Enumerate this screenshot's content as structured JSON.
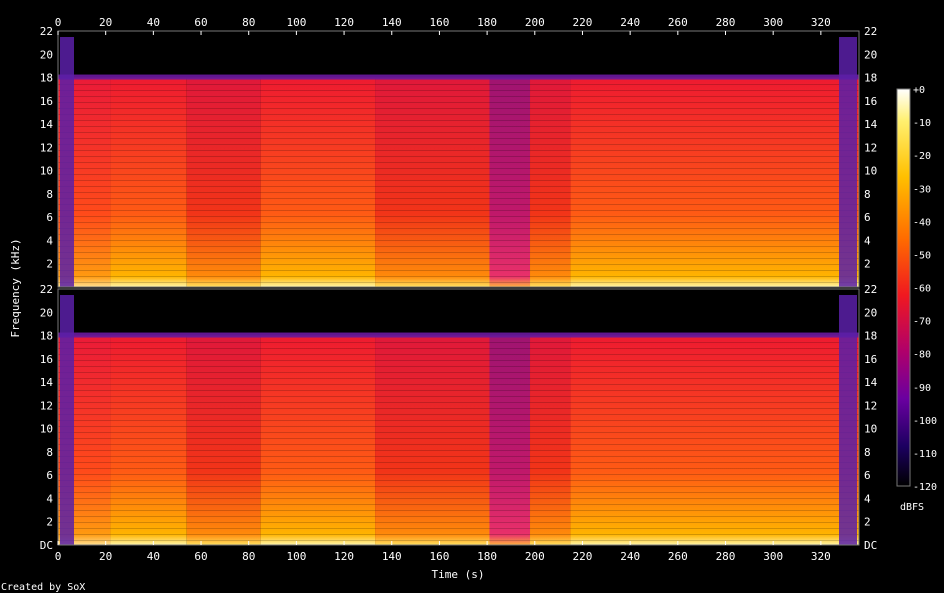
{
  "chart_data": {
    "type": "heatmap",
    "title": "",
    "xlabel": "Time (s)",
    "ylabel": "Frequency (kHz)",
    "xlim": [
      0,
      336
    ],
    "ylim": [
      0,
      22
    ],
    "x_ticks": [
      "0",
      "20",
      "40",
      "60",
      "80",
      "100",
      "120",
      "140",
      "160",
      "180",
      "200",
      "220",
      "240",
      "260",
      "280",
      "300",
      "320"
    ],
    "y_ticks_top_channel": [
      "2",
      "4",
      "6",
      "8",
      "10",
      "12",
      "14",
      "16",
      "18",
      "20",
      "22"
    ],
    "y_ticks_bottom_channel": [
      "DC",
      "2",
      "4",
      "6",
      "8",
      "10",
      "12",
      "14",
      "16",
      "18",
      "20",
      "22"
    ],
    "channels": 2,
    "colorbar": {
      "label": "dBFS",
      "ticks": [
        "+0",
        "-10",
        "-20",
        "-30",
        "-40",
        "-50",
        "-60",
        "-70",
        "-80",
        "-90",
        "-100",
        "-110",
        "-120"
      ]
    },
    "lowpass_cutoff_khz": 18,
    "segments": [
      {
        "start": 0,
        "end": 22,
        "level": "fade-in"
      },
      {
        "start": 22,
        "end": 54,
        "level": "loud"
      },
      {
        "start": 54,
        "end": 85,
        "level": "medium"
      },
      {
        "start": 85,
        "end": 133,
        "level": "loud"
      },
      {
        "start": 133,
        "end": 181,
        "level": "medium"
      },
      {
        "start": 181,
        "end": 198,
        "level": "quiet"
      },
      {
        "start": 198,
        "end": 215,
        "level": "medium"
      },
      {
        "start": 215,
        "end": 336,
        "level": "loud"
      }
    ],
    "footer": "Created by SoX"
  }
}
